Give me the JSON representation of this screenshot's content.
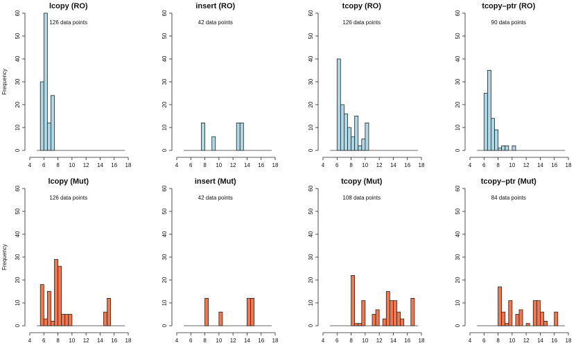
{
  "chart_data": [
    {
      "type": "histogram",
      "title": "lcopy (RO)",
      "annotation": "126 data points",
      "ylabel": "Frequency",
      "color": "#add8e6",
      "xlim": [
        4,
        18
      ],
      "ylim": [
        0,
        60
      ],
      "xticks": [
        4,
        6,
        8,
        10,
        12,
        14,
        16,
        18
      ],
      "yticks": [
        0,
        10,
        20,
        30,
        40,
        50,
        60
      ],
      "bin_width": 0.5,
      "bins": [
        [
          5.5,
          30
        ],
        [
          6,
          60
        ],
        [
          6.5,
          12
        ],
        [
          7,
          24
        ]
      ]
    },
    {
      "type": "histogram",
      "title": "insert (RO)",
      "annotation": "42 data points",
      "ylabel": "",
      "color": "#add8e6",
      "xlim": [
        4,
        18
      ],
      "ylim": [
        0,
        60
      ],
      "xticks": [
        4,
        6,
        8,
        10,
        12,
        14,
        16,
        18
      ],
      "yticks": [
        0,
        10,
        20,
        30,
        40,
        50,
        60
      ],
      "bin_width": 0.5,
      "bins": [
        [
          7.5,
          12
        ],
        [
          9,
          6
        ],
        [
          12.5,
          12
        ],
        [
          13,
          12
        ]
      ]
    },
    {
      "type": "histogram",
      "title": "tcopy (RO)",
      "annotation": "126 data points",
      "ylabel": "",
      "color": "#add8e6",
      "xlim": [
        4,
        18
      ],
      "ylim": [
        0,
        60
      ],
      "xticks": [
        4,
        6,
        8,
        10,
        12,
        14,
        16,
        18
      ],
      "yticks": [
        0,
        10,
        20,
        30,
        40,
        50,
        60
      ],
      "bin_width": 0.5,
      "bins": [
        [
          6,
          40
        ],
        [
          6.5,
          20
        ],
        [
          7,
          16
        ],
        [
          7.5,
          10
        ],
        [
          8,
          6
        ],
        [
          8.5,
          15
        ],
        [
          9,
          2
        ],
        [
          9.5,
          5
        ],
        [
          10,
          12
        ]
      ]
    },
    {
      "type": "histogram",
      "title": "tcopy–ptr (RO)",
      "annotation": "90 data points",
      "ylabel": "",
      "color": "#add8e6",
      "xlim": [
        4,
        18
      ],
      "ylim": [
        0,
        60
      ],
      "xticks": [
        4,
        6,
        8,
        10,
        12,
        14,
        16,
        18
      ],
      "yticks": [
        0,
        10,
        20,
        30,
        40,
        50,
        60
      ],
      "bin_width": 0.5,
      "bins": [
        [
          6,
          25
        ],
        [
          6.5,
          35
        ],
        [
          7,
          14
        ],
        [
          7.5,
          9
        ],
        [
          8,
          1
        ],
        [
          8.5,
          2
        ],
        [
          9,
          2
        ],
        [
          10,
          2
        ]
      ]
    },
    {
      "type": "histogram",
      "title": "lcopy (Mut)",
      "annotation": "126 data points",
      "ylabel": "Frequency",
      "color": "#f4774c",
      "xlim": [
        4,
        18
      ],
      "ylim": [
        0,
        60
      ],
      "xticks": [
        4,
        6,
        8,
        10,
        12,
        14,
        16,
        18
      ],
      "yticks": [
        0,
        10,
        20,
        30,
        40,
        50,
        60
      ],
      "bin_width": 0.5,
      "bins": [
        [
          5.5,
          18
        ],
        [
          6,
          3
        ],
        [
          6.5,
          15
        ],
        [
          7,
          2
        ],
        [
          7.5,
          29
        ],
        [
          8,
          26
        ],
        [
          8.5,
          5
        ],
        [
          9,
          5
        ],
        [
          9.5,
          5
        ],
        [
          14.5,
          6
        ],
        [
          15,
          12
        ]
      ]
    },
    {
      "type": "histogram",
      "title": "insert (Mut)",
      "annotation": "42 data points",
      "ylabel": "",
      "color": "#f4774c",
      "xlim": [
        4,
        18
      ],
      "ylim": [
        0,
        60
      ],
      "xticks": [
        4,
        6,
        8,
        10,
        12,
        14,
        16,
        18
      ],
      "yticks": [
        0,
        10,
        20,
        30,
        40,
        50,
        60
      ],
      "bin_width": 0.5,
      "bins": [
        [
          8,
          12
        ],
        [
          10,
          6
        ],
        [
          14,
          12
        ],
        [
          14.5,
          12
        ]
      ]
    },
    {
      "type": "histogram",
      "title": "tcopy (Mut)",
      "annotation": "108 data points",
      "ylabel": "",
      "color": "#f4774c",
      "xlim": [
        4,
        18
      ],
      "ylim": [
        0,
        60
      ],
      "xticks": [
        4,
        6,
        8,
        10,
        12,
        14,
        16,
        18
      ],
      "yticks": [
        0,
        10,
        20,
        30,
        40,
        50,
        60
      ],
      "bin_width": 0.5,
      "bins": [
        [
          8,
          22
        ],
        [
          8.5,
          1
        ],
        [
          9,
          1
        ],
        [
          9.5,
          11
        ],
        [
          11,
          5
        ],
        [
          11.5,
          7
        ],
        [
          12.5,
          3
        ],
        [
          13,
          15
        ],
        [
          13.5,
          11
        ],
        [
          14,
          11
        ],
        [
          14.5,
          6
        ],
        [
          15,
          3
        ],
        [
          16.5,
          12
        ]
      ]
    },
    {
      "type": "histogram",
      "title": "tcopy–ptr (Mut)",
      "annotation": "84 data points",
      "ylabel": "",
      "color": "#f4774c",
      "xlim": [
        4,
        18
      ],
      "ylim": [
        0,
        60
      ],
      "xticks": [
        4,
        6,
        8,
        10,
        12,
        14,
        16,
        18
      ],
      "yticks": [
        0,
        10,
        20,
        30,
        40,
        50,
        60
      ],
      "bin_width": 0.5,
      "bins": [
        [
          8,
          17
        ],
        [
          8.5,
          6
        ],
        [
          9,
          1
        ],
        [
          9.5,
          11
        ],
        [
          10.5,
          5
        ],
        [
          11,
          7
        ],
        [
          12,
          1
        ],
        [
          13,
          11
        ],
        [
          13.5,
          11
        ],
        [
          14,
          6
        ],
        [
          14.5,
          2
        ],
        [
          16,
          6
        ]
      ]
    }
  ]
}
